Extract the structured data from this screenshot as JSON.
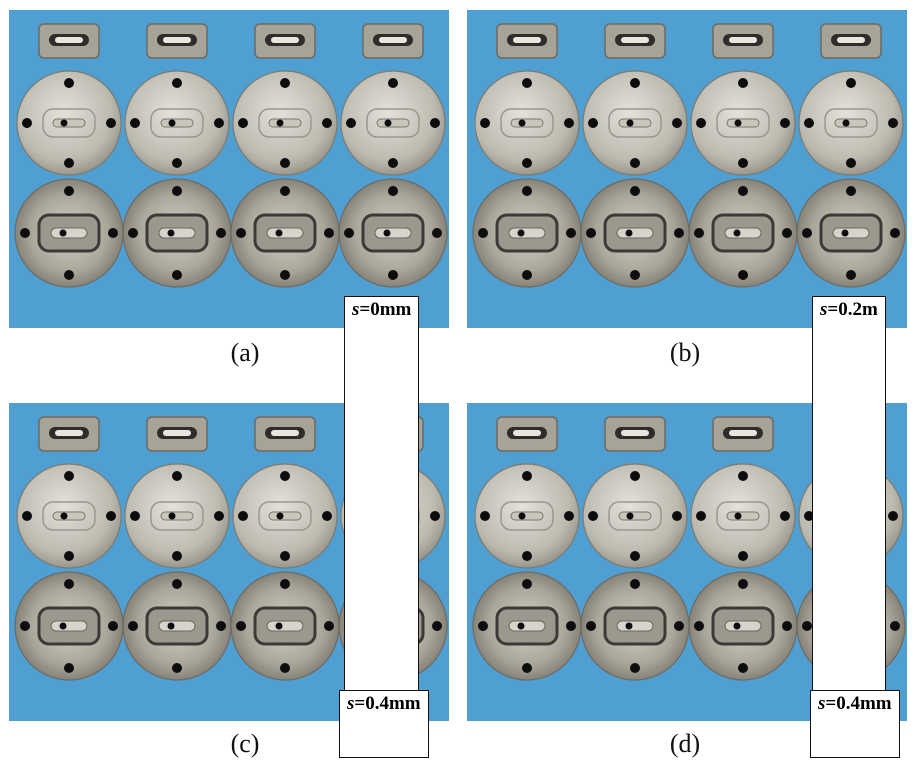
{
  "panels": [
    {
      "id": "a",
      "caption": "(a)",
      "label_var": "s",
      "label_value": "=0mm"
    },
    {
      "id": "b",
      "caption": "(b)",
      "label_var": "s",
      "label_value": "=0.2m"
    },
    {
      "id": "c",
      "caption": "(c)",
      "label_var": "s",
      "label_value": "=0.4mm"
    },
    {
      "id": "d",
      "caption": "(d)",
      "label_var": "s",
      "label_value": "=0.4mm"
    }
  ],
  "colors": {
    "background": "#4f9fd2",
    "metal_light": "#e3e1d9",
    "metal_mid": "#bdbab0",
    "metal_dark": "#6e6a60",
    "hole": "#0d0d10"
  }
}
